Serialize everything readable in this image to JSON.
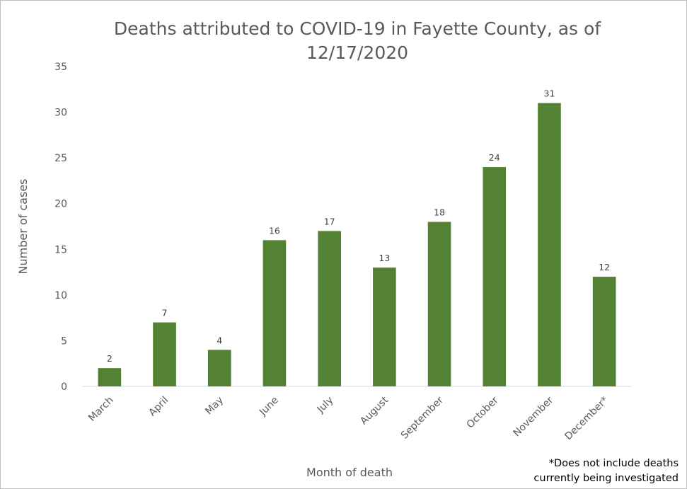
{
  "chart_data": {
    "type": "bar",
    "title": "Deaths attributed to COVID-19 in Fayette County, as of 12/17/2020",
    "xlabel": "Month of death",
    "ylabel": "Number of cases",
    "categories": [
      "March",
      "April",
      "May",
      "June",
      "July",
      "August",
      "September",
      "October",
      "November",
      "December*"
    ],
    "values": [
      2,
      7,
      4,
      16,
      17,
      13,
      18,
      24,
      31,
      12
    ],
    "ylim": [
      0,
      35
    ],
    "yticks": [
      "0",
      "5",
      "10",
      "15",
      "20",
      "25",
      "30",
      "35"
    ],
    "grid": false,
    "legend": "none",
    "bar_color": "#548235",
    "data_labels": true,
    "footnote": [
      "*Does not include deaths",
      "currently being investigated"
    ]
  }
}
